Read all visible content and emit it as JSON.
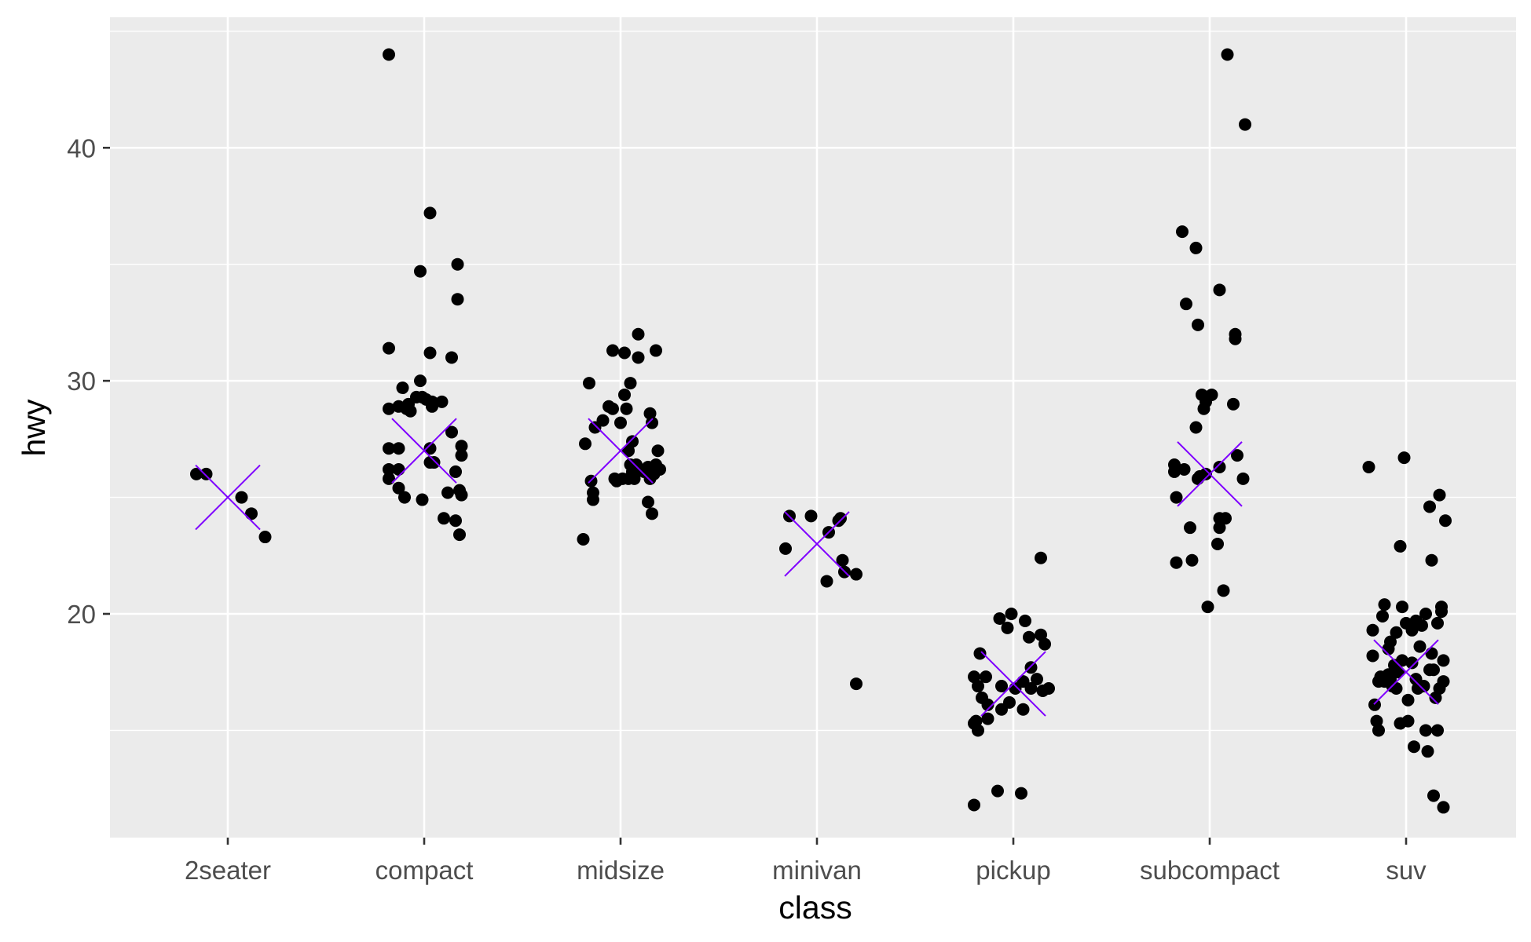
{
  "chart_data": {
    "type": "scatter",
    "xlabel": "class",
    "ylabel": "hwy",
    "categories": [
      "2seater",
      "compact",
      "midsize",
      "minivan",
      "pickup",
      "subcompact",
      "suv"
    ],
    "y_ticks": [
      20,
      30,
      40
    ],
    "ylim": [
      10.4,
      45.6
    ],
    "grid": true,
    "colors": {
      "points": "#000000",
      "summary_marker": "#7f00ff",
      "panel_background": "#ebebeb",
      "grid": "#ffffff"
    },
    "series": [
      {
        "values": [
          [
            -0.16,
            26
          ],
          [
            -0.11,
            26
          ],
          [
            0.07,
            25
          ],
          [
            0.12,
            24.3
          ],
          [
            0.19,
            23.3
          ]
        ]
      },
      {
        "values": [
          [
            -0.18,
            44
          ],
          [
            -0.18,
            31.4
          ],
          [
            -0.18,
            28.8
          ],
          [
            -0.18,
            27.1
          ],
          [
            -0.18,
            26.2
          ],
          [
            -0.18,
            25.8
          ],
          [
            -0.13,
            28.9
          ],
          [
            -0.13,
            27.1
          ],
          [
            -0.13,
            26.2
          ],
          [
            -0.13,
            25.4
          ],
          [
            -0.11,
            29.7
          ],
          [
            -0.1,
            25
          ],
          [
            -0.09,
            28.8
          ],
          [
            -0.08,
            29
          ],
          [
            -0.07,
            28.7
          ],
          [
            -0.04,
            29.3
          ],
          [
            -0.02,
            30
          ],
          [
            -0.01,
            29.3
          ],
          [
            -0.01,
            24.9
          ],
          [
            0.01,
            29.2
          ],
          [
            0.03,
            27.1
          ],
          [
            0.03,
            26.5
          ],
          [
            0.04,
            28.9
          ],
          [
            0.05,
            26.5
          ],
          [
            0.04,
            29.1
          ],
          [
            0.03,
            31.2
          ],
          [
            0.03,
            37.2
          ],
          [
            -0.02,
            34.7
          ],
          [
            0.09,
            29.1
          ],
          [
            0.1,
            24.1
          ],
          [
            0.12,
            25.2
          ],
          [
            0.14,
            31
          ],
          [
            0.14,
            27.8
          ],
          [
            0.16,
            24
          ],
          [
            0.16,
            26.1
          ],
          [
            0.17,
            33.5
          ],
          [
            0.17,
            35
          ],
          [
            0.19,
            27.2
          ],
          [
            0.19,
            26.8
          ],
          [
            0.19,
            25.1
          ],
          [
            0.18,
            25.3
          ],
          [
            0.18,
            23.4
          ]
        ]
      },
      {
        "values": [
          [
            -0.19,
            23.2
          ],
          [
            -0.18,
            27.3
          ],
          [
            -0.16,
            29.9
          ],
          [
            -0.15,
            25.7
          ],
          [
            -0.14,
            25.2
          ],
          [
            -0.14,
            24.9
          ],
          [
            -0.13,
            28
          ],
          [
            -0.09,
            28.3
          ],
          [
            -0.06,
            28.9
          ],
          [
            -0.04,
            31.3
          ],
          [
            -0.04,
            28.8
          ],
          [
            -0.03,
            25.8
          ],
          [
            -0.02,
            25.7
          ],
          [
            0,
            28.2
          ],
          [
            0.01,
            25.8
          ],
          [
            0.02,
            31.2
          ],
          [
            0.02,
            29.4
          ],
          [
            0.03,
            28.8
          ],
          [
            0.04,
            25.8
          ],
          [
            0.04,
            27
          ],
          [
            0.05,
            29.9
          ],
          [
            0.05,
            26.4
          ],
          [
            0.06,
            26.1
          ],
          [
            0.06,
            27.4
          ],
          [
            0.07,
            25.8
          ],
          [
            0.08,
            26.4
          ],
          [
            0.09,
            31
          ],
          [
            0.09,
            32
          ],
          [
            0.1,
            26.2
          ],
          [
            0.12,
            26.1
          ],
          [
            0.14,
            24.8
          ],
          [
            0.14,
            26.3
          ],
          [
            0.15,
            25.8
          ],
          [
            0.15,
            28.6
          ],
          [
            0.16,
            28.2
          ],
          [
            0.16,
            24.3
          ],
          [
            0.17,
            26
          ],
          [
            0.18,
            31.3
          ],
          [
            0.18,
            26.4
          ],
          [
            0.19,
            27
          ],
          [
            0.2,
            26.2
          ]
        ]
      },
      {
        "values": [
          [
            -0.16,
            22.8
          ],
          [
            -0.14,
            24.2
          ],
          [
            -0.03,
            24.2
          ],
          [
            0.05,
            21.4
          ],
          [
            0.06,
            23.5
          ],
          [
            0.11,
            24
          ],
          [
            0.12,
            24.1
          ],
          [
            0.13,
            22.3
          ],
          [
            0.14,
            21.8
          ],
          [
            0.2,
            21.7
          ],
          [
            0.2,
            17
          ]
        ]
      },
      {
        "values": [
          [
            -0.2,
            11.8
          ],
          [
            -0.2,
            15.3
          ],
          [
            -0.2,
            17.3
          ],
          [
            -0.19,
            15.4
          ],
          [
            -0.18,
            16.9
          ],
          [
            -0.18,
            15
          ],
          [
            -0.17,
            18.3
          ],
          [
            -0.16,
            16.4
          ],
          [
            -0.14,
            17.3
          ],
          [
            -0.13,
            16.1
          ],
          [
            -0.13,
            15.5
          ],
          [
            -0.08,
            12.4
          ],
          [
            -0.07,
            19.8
          ],
          [
            -0.06,
            16.9
          ],
          [
            -0.06,
            15.9
          ],
          [
            -0.03,
            19.4
          ],
          [
            -0.02,
            16.2
          ],
          [
            -0.01,
            20
          ],
          [
            0.01,
            16.8
          ],
          [
            0.04,
            12.3
          ],
          [
            0.05,
            15.9
          ],
          [
            0.05,
            17.1
          ],
          [
            0.06,
            19.7
          ],
          [
            0.08,
            19
          ],
          [
            0.09,
            16.8
          ],
          [
            0.09,
            17.7
          ],
          [
            0.12,
            17.2
          ],
          [
            0.14,
            19.1
          ],
          [
            0.14,
            22.4
          ],
          [
            0.15,
            16.7
          ],
          [
            0.16,
            18.7
          ],
          [
            0.18,
            16.8
          ]
        ]
      },
      {
        "values": [
          [
            -0.18,
            26.4
          ],
          [
            -0.18,
            26.1
          ],
          [
            -0.17,
            22.2
          ],
          [
            -0.17,
            25
          ],
          [
            -0.14,
            36.4
          ],
          [
            -0.13,
            26.2
          ],
          [
            -0.12,
            33.3
          ],
          [
            -0.1,
            23.7
          ],
          [
            -0.09,
            22.3
          ],
          [
            -0.07,
            35.7
          ],
          [
            -0.07,
            28
          ],
          [
            -0.06,
            25.8
          ],
          [
            -0.06,
            32.4
          ],
          [
            -0.05,
            25.9
          ],
          [
            -0.04,
            29.4
          ],
          [
            -0.03,
            28.8
          ],
          [
            -0.02,
            26
          ],
          [
            -0.02,
            29.1
          ],
          [
            -0.01,
            20.3
          ],
          [
            0.01,
            29.4
          ],
          [
            0.05,
            33.9
          ],
          [
            0.05,
            26.3
          ],
          [
            0.05,
            24.1
          ],
          [
            0.04,
            23
          ],
          [
            0.05,
            23.7
          ],
          [
            0.07,
            21
          ],
          [
            0.08,
            24.1
          ],
          [
            0.09,
            44
          ],
          [
            0.13,
            32
          ],
          [
            0.13,
            31.8
          ],
          [
            0.12,
            29
          ],
          [
            0.14,
            26.8
          ],
          [
            0.17,
            25.8
          ],
          [
            0.18,
            41
          ]
        ]
      },
      {
        "values": [
          [
            -0.19,
            26.3
          ],
          [
            -0.17,
            19.3
          ],
          [
            -0.17,
            18.2
          ],
          [
            -0.16,
            16.1
          ],
          [
            -0.15,
            15.4
          ],
          [
            -0.14,
            17.1
          ],
          [
            -0.14,
            15
          ],
          [
            -0.13,
            17.3
          ],
          [
            -0.12,
            19.9
          ],
          [
            -0.11,
            17.1
          ],
          [
            -0.11,
            20.4
          ],
          [
            -0.09,
            18.5
          ],
          [
            -0.09,
            17.4
          ],
          [
            -0.08,
            18.8
          ],
          [
            -0.08,
            17.2
          ],
          [
            -0.07,
            16.9
          ],
          [
            -0.06,
            17.8
          ],
          [
            -0.05,
            16.8
          ],
          [
            -0.05,
            19.2
          ],
          [
            -0.04,
            17.5
          ],
          [
            -0.03,
            15.3
          ],
          [
            -0.03,
            22.9
          ],
          [
            -0.02,
            18
          ],
          [
            -0.02,
            20.3
          ],
          [
            -0.01,
            26.7
          ],
          [
            0,
            19.6
          ],
          [
            0.01,
            16.3
          ],
          [
            0.01,
            15.4
          ],
          [
            0.03,
            19.3
          ],
          [
            0.03,
            17.9
          ],
          [
            0.04,
            14.3
          ],
          [
            0.05,
            17.2
          ],
          [
            0.05,
            19.7
          ],
          [
            0.06,
            16.8
          ],
          [
            0.07,
            18.6
          ],
          [
            0.08,
            19.5
          ],
          [
            0.09,
            16.9
          ],
          [
            0.1,
            20
          ],
          [
            0.1,
            15
          ],
          [
            0.11,
            14.1
          ],
          [
            0.12,
            17.6
          ],
          [
            0.12,
            24.6
          ],
          [
            0.13,
            18.3
          ],
          [
            0.13,
            22.3
          ],
          [
            0.14,
            17.6
          ],
          [
            0.14,
            12.2
          ],
          [
            0.15,
            16.4
          ],
          [
            0.16,
            19.6
          ],
          [
            0.16,
            15
          ],
          [
            0.17,
            16.8
          ],
          [
            0.17,
            25.1
          ],
          [
            0.18,
            20.1
          ],
          [
            0.18,
            20.3
          ],
          [
            0.19,
            17.1
          ],
          [
            0.19,
            18
          ],
          [
            0.19,
            11.7
          ],
          [
            0.2,
            24
          ]
        ]
      }
    ],
    "summary_markers": [
      {
        "category": "2seater",
        "y": 25
      },
      {
        "category": "compact",
        "y": 27
      },
      {
        "category": "midsize",
        "y": 27
      },
      {
        "category": "minivan",
        "y": 23
      },
      {
        "category": "pickup",
        "y": 17
      },
      {
        "category": "subcompact",
        "y": 26
      },
      {
        "category": "suv",
        "y": 17.5
      }
    ]
  }
}
